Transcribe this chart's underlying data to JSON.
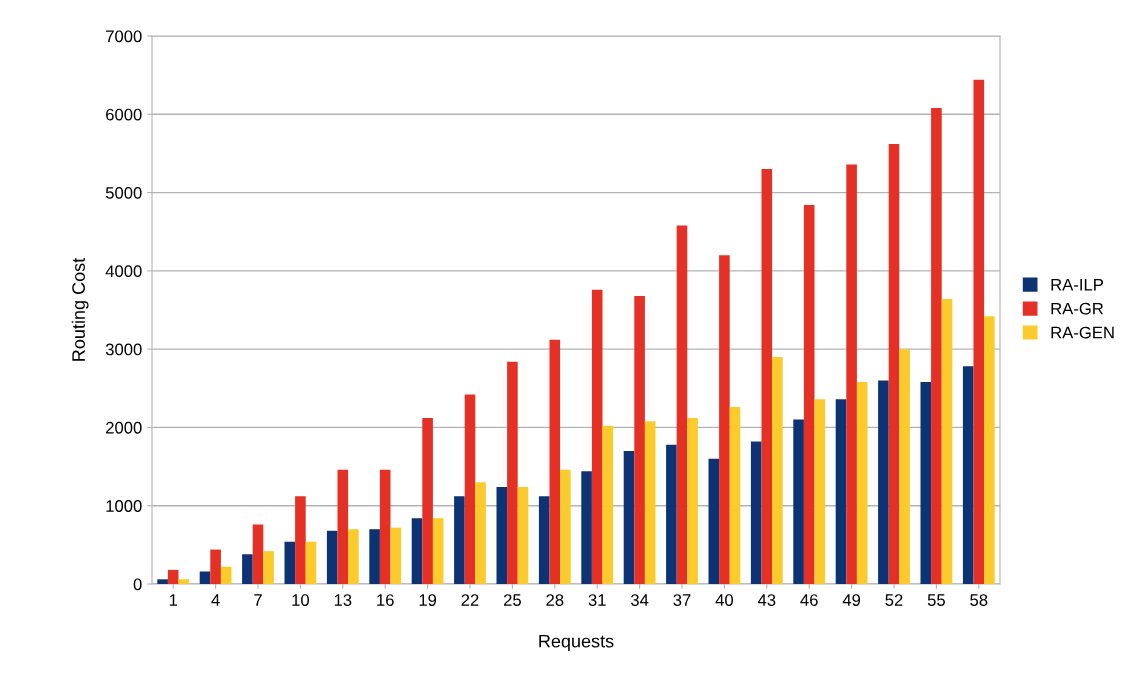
{
  "chart_data": {
    "type": "bar",
    "xlabel": "Requests",
    "ylabel": "Routing Cost",
    "categories": [
      "1",
      "4",
      "7",
      "10",
      "13",
      "16",
      "19",
      "22",
      "25",
      "28",
      "31",
      "34",
      "37",
      "40",
      "43",
      "46",
      "49",
      "52",
      "55",
      "58"
    ],
    "series": [
      {
        "name": "RA-ILP",
        "color": "#0c3373",
        "values": [
          60,
          160,
          380,
          540,
          680,
          700,
          840,
          1120,
          1240,
          1120,
          1440,
          1700,
          1780,
          1600,
          1820,
          2100,
          2360,
          2600,
          2580,
          2780
        ]
      },
      {
        "name": "RA-GR",
        "color": "#e53026",
        "values": [
          180,
          440,
          760,
          1120,
          1460,
          1460,
          2120,
          2420,
          2840,
          3120,
          3760,
          3680,
          4580,
          4200,
          5300,
          4840,
          5360,
          5620,
          6080,
          6440
        ]
      },
      {
        "name": "RA-GEN",
        "color": "#fbcb2b",
        "values": [
          60,
          220,
          420,
          540,
          700,
          720,
          840,
          1300,
          1240,
          1460,
          2020,
          2080,
          2120,
          2260,
          2900,
          2360,
          2580,
          3000,
          3640,
          3420
        ]
      }
    ],
    "ylim": [
      0,
      7000
    ],
    "yticks": [
      0,
      1000,
      2000,
      3000,
      4000,
      5000,
      6000,
      7000
    ],
    "grid": "y",
    "legend": "right"
  }
}
